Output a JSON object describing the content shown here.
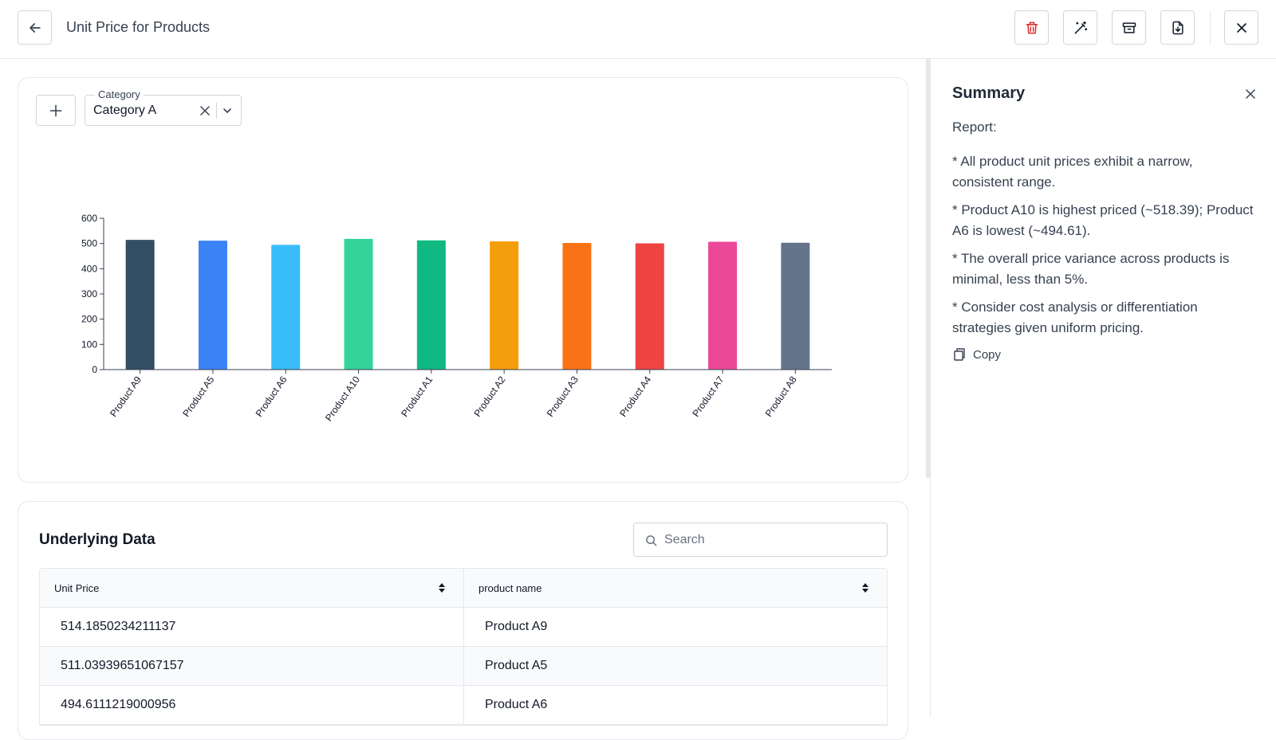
{
  "header": {
    "title": "Unit Price for Products"
  },
  "toolbar": {
    "back_icon": "arrow-left-icon",
    "delete_icon": "trash-icon",
    "magic_icon": "magic-wand-icon",
    "archive_icon": "archive-icon",
    "export_icon": "file-download-icon",
    "close_icon": "close-icon"
  },
  "filter": {
    "legend": "Category",
    "value": "Category A"
  },
  "chart_data": {
    "type": "bar",
    "categories": [
      "Product A9",
      "Product A5",
      "Product A6",
      "Product A10",
      "Product A1",
      "Product A2",
      "Product A3",
      "Product A4",
      "Product A7",
      "Product A8"
    ],
    "values": [
      514.19,
      511.04,
      494.61,
      518.39,
      512.5,
      508.5,
      502.0,
      500.5,
      507.0,
      503.0
    ],
    "colors": [
      "#334d64",
      "#3b82f6",
      "#38bdf8",
      "#34d399",
      "#10b981",
      "#f59e0b",
      "#f97316",
      "#ef4444",
      "#ec4899",
      "#64748b"
    ],
    "yticks": [
      0,
      100,
      200,
      300,
      400,
      500,
      600
    ],
    "ylim": [
      0,
      600
    ],
    "grid": false
  },
  "table": {
    "title": "Underlying Data",
    "search_placeholder": "Search",
    "columns": [
      "Unit Price",
      "product name"
    ],
    "rows": [
      [
        "514.1850234211137",
        "Product A9"
      ],
      [
        "511.03939651067157",
        "Product A5"
      ],
      [
        "494.6111219000956",
        "Product A6"
      ]
    ]
  },
  "summary": {
    "title": "Summary",
    "report_label": "Report:",
    "bullets": [
      "* All product unit prices exhibit a narrow, consistent range.",
      "* Product A10 is highest priced (~518.39); Product A6 is lowest (~494.61).",
      "* The overall price variance across products is minimal, less than 5%.",
      "* Consider cost analysis or differentiation strategies given uniform pricing."
    ],
    "copy_label": "Copy"
  }
}
